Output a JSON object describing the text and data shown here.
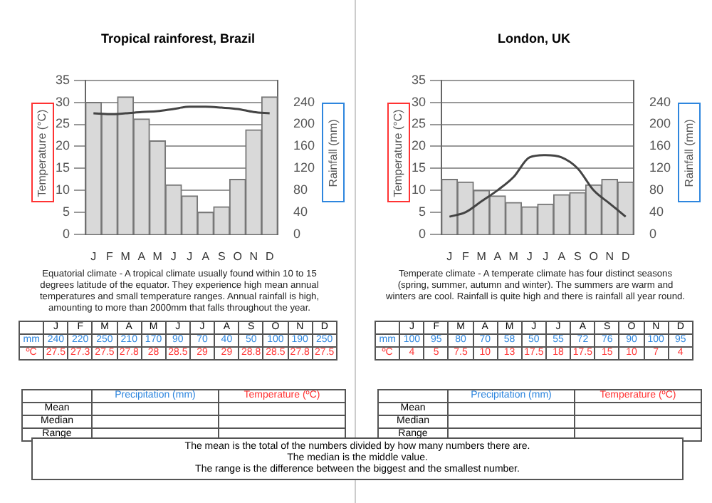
{
  "chart_data": [
    {
      "type": "bar",
      "title": "Tropical rainforest, Brazil",
      "categories": [
        "J",
        "F",
        "M",
        "A",
        "M",
        "J",
        "J",
        "A",
        "S",
        "O",
        "N",
        "D"
      ],
      "ylabel": "Temperature (°C)",
      "y2label": "Rainfall (mm)",
      "ylim": [
        0,
        35
      ],
      "yticks": [
        0,
        5,
        10,
        15,
        20,
        25,
        30,
        35
      ],
      "y2lim": [
        0,
        280
      ],
      "y2ticks": [
        0,
        40,
        80,
        120,
        160,
        200,
        240
      ],
      "grid": "y",
      "series": [
        {
          "axis": "y2",
          "color": "#d9d9d9",
          "values": [
            240,
            220,
            250,
            210,
            170,
            90,
            70,
            40,
            50,
            100,
            190,
            250
          ]
        },
        {
          "type": "line",
          "axis": "y",
          "color": "#444444",
          "values": [
            27.5,
            27.3,
            27.5,
            27.8,
            28,
            28.5,
            29,
            29,
            28.8,
            28.5,
            27.8,
            27.5
          ]
        }
      ],
      "annotations": [
        "Equatorial climate - A tropical climate usually found within 10 to 15 degrees latitude of the equator. They experience high mean annual temperatures and small temperature ranges. Annual rainfall is high, amounting to more than 2000mm that falls throughout the year.",
        "mm",
        "ºC",
        "Precipitation (mm)",
        "Temperature (ºC)",
        "Mean",
        "Median",
        "Range",
        "240",
        "220",
        "250",
        "210",
        "170",
        "90",
        "70",
        "40",
        "50",
        "100",
        "190",
        "250",
        "27.5",
        "27.3",
        "27.5",
        "27.8",
        "28",
        "28.5",
        "29",
        "29",
        "28.8",
        "28.5",
        "27.8",
        "27.5",
        "The mean is the total of the numbers divided by how many numbers there are.",
        "The median is the middle value.",
        "The range is the difference between the biggest and the smallest number."
      ]
    },
    {
      "type": "bar",
      "title": "London, UK",
      "categories": [
        "J",
        "F",
        "M",
        "A",
        "M",
        "J",
        "J",
        "A",
        "S",
        "O",
        "N",
        "D"
      ],
      "ylabel": "Temperature (°C)",
      "y2label": "Rainfall (mm)",
      "ylim": [
        0,
        35
      ],
      "yticks": [
        0,
        5,
        10,
        15,
        20,
        25,
        30,
        35
      ],
      "y2lim": [
        0,
        280
      ],
      "y2ticks": [
        0,
        40,
        80,
        120,
        160,
        200,
        240
      ],
      "grid": "y",
      "series": [
        {
          "axis": "y2",
          "color": "#d9d9d9",
          "values": [
            100,
            95,
            80,
            70,
            58,
            50,
            55,
            72,
            76,
            90,
            100,
            95
          ]
        },
        {
          "type": "line",
          "axis": "y",
          "color": "#444444",
          "values": [
            4,
            5,
            7.5,
            10,
            13,
            17.5,
            18,
            17.5,
            15,
            10,
            7,
            4
          ]
        }
      ],
      "annotations": [
        "Temperate climate - A temperate climate has four distinct seasons (spring, summer, autumn and winter). The summers are warm and winters are cool. Rainfall is quite high and there is rainfall all year round.",
        "mm",
        "ºC",
        "Precipitation (mm)",
        "Temperature (ºC)",
        "Mean",
        "Median",
        "Range",
        "100",
        "95",
        "80",
        "70",
        "58",
        "50",
        "55",
        "72",
        "76",
        "90",
        "100",
        "95",
        "4",
        "5",
        "7.5",
        "10",
        "13",
        "17.5",
        "18",
        "17.5",
        "15",
        "10",
        "7",
        "4"
      ]
    }
  ]
}
